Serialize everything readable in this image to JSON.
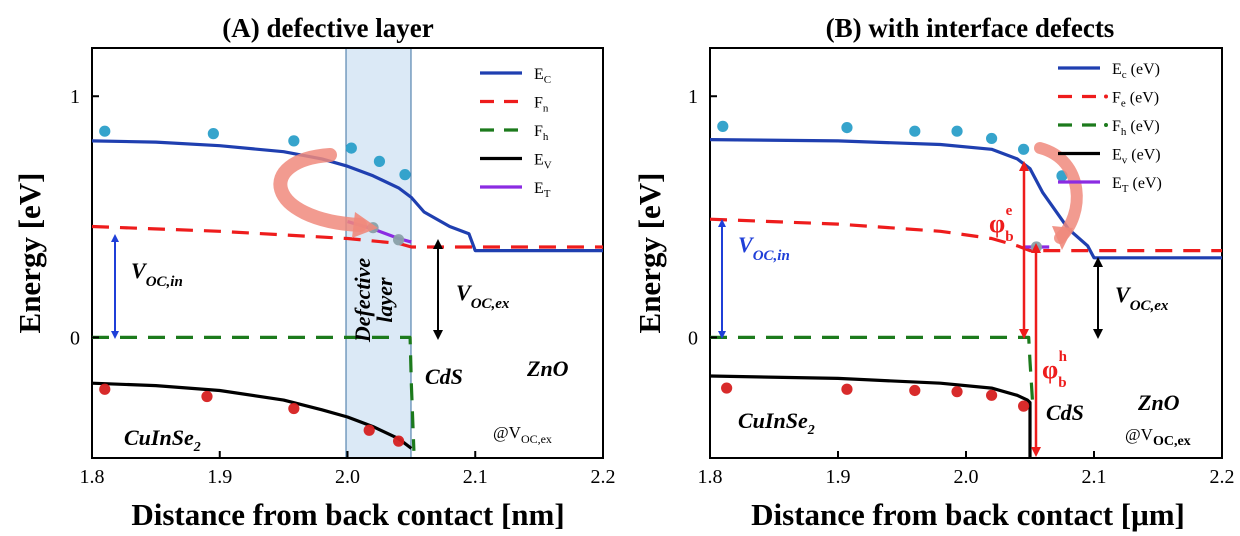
{
  "chart_data": [
    {
      "type": "line",
      "title": "(A) defective layer",
      "xlabel": "Distance from back contact [nm]",
      "ylabel": "Energy [eV]",
      "xlim": [
        1.8,
        2.2
      ],
      "ylim": [
        -0.5,
        1.2
      ],
      "xticks": [
        "1.8",
        "1.9",
        "2.0",
        "2.1",
        "2.2"
      ],
      "yticks": [
        "0",
        "1"
      ],
      "legend_position": "top-right",
      "series": [
        {
          "name": "E_C",
          "label_main": "E",
          "label_sub": "C",
          "color": "#1f3fb0",
          "style": "solid",
          "x": [
            1.8,
            1.85,
            1.9,
            1.95,
            1.98,
            2.0,
            2.02,
            2.04,
            2.05,
            2.06,
            2.08,
            2.095,
            2.1,
            2.2
          ],
          "y": [
            0.815,
            0.81,
            0.795,
            0.77,
            0.74,
            0.71,
            0.67,
            0.62,
            0.58,
            0.52,
            0.46,
            0.43,
            0.36,
            0.36
          ]
        },
        {
          "name": "F_n",
          "label_main": "F",
          "label_sub": "n",
          "color": "#ee1c1c",
          "style": "dashed",
          "x": [
            1.8,
            1.9,
            2.0,
            2.04,
            2.05,
            2.2
          ],
          "y": [
            0.46,
            0.44,
            0.41,
            0.39,
            0.375,
            0.375
          ]
        },
        {
          "name": "F_h",
          "label_main": "F",
          "label_sub": "h",
          "color": "#1c7a1c",
          "style": "dashed",
          "x": [
            1.8,
            2.049,
            2.05,
            2.052
          ],
          "y": [
            0.0,
            0.0,
            -0.2,
            -0.47
          ]
        },
        {
          "name": "E_V",
          "label_main": "E",
          "label_sub": "V",
          "color": "#000000",
          "style": "solid",
          "x": [
            1.8,
            1.85,
            1.9,
            1.95,
            1.98,
            2.0,
            2.02,
            2.04,
            2.05
          ],
          "y": [
            -0.19,
            -0.2,
            -0.22,
            -0.26,
            -0.3,
            -0.33,
            -0.37,
            -0.42,
            -0.46
          ]
        },
        {
          "name": "E_T",
          "label_main": "E",
          "label_sub": "T",
          "color": "#8b2be2",
          "style": "solid",
          "x": [
            2.0,
            2.02,
            2.04,
            2.05
          ],
          "y": [
            0.48,
            0.45,
            0.41,
            0.395
          ]
        }
      ],
      "scatter": [
        {
          "color": "#2b9fc9",
          "x": [
            1.81,
            1.895,
            1.958,
            2.003,
            2.025,
            2.045
          ],
          "y": [
            0.855,
            0.845,
            0.815,
            0.785,
            0.73,
            0.675
          ]
        },
        {
          "color": "#d62020",
          "x": [
            1.81,
            1.89,
            1.958,
            2.017,
            2.04
          ],
          "y": [
            -0.215,
            -0.245,
            -0.295,
            -0.385,
            -0.43
          ]
        },
        {
          "color": "#8aa0a8",
          "x": [
            2.02,
            2.04
          ],
          "y": [
            0.455,
            0.405
          ]
        }
      ],
      "annotations": {
        "v_in": "V",
        "v_in_sub": "OC,in",
        "v_ex": "V",
        "v_ex_sub": "OC,ex",
        "cds": "CdS",
        "zno": "ZnO",
        "cis": "CuInSe",
        "cis_sub": "2",
        "at": "@V",
        "at_sub": "OC,ex",
        "defect_line1": "Defective",
        "defect_line2": "layer"
      }
    },
    {
      "type": "line",
      "title": "(B) with interface defects",
      "xlabel": "Distance from back contact [μm]",
      "ylabel": "Energy [eV]",
      "xlim": [
        1.8,
        2.2
      ],
      "ylim": [
        -0.5,
        1.2
      ],
      "xticks": [
        "1.8",
        "1.9",
        "2.0",
        "2.1",
        "2.2"
      ],
      "yticks": [
        "0",
        "1"
      ],
      "legend_position": "top-right",
      "series": [
        {
          "name": "E_c (eV)",
          "label_main": "E",
          "label_sub": "c",
          "label_tail": " (eV)",
          "color": "#1f3fb0",
          "style": "solid",
          "x": [
            1.8,
            1.9,
            1.98,
            2.02,
            2.04,
            2.05,
            2.06,
            2.08,
            2.095,
            2.1,
            2.2
          ],
          "y": [
            0.82,
            0.815,
            0.8,
            0.78,
            0.74,
            0.7,
            0.6,
            0.45,
            0.38,
            0.33,
            0.33
          ]
        },
        {
          "name": "F_e (eV)",
          "label_main": "F",
          "label_sub": "e",
          "label_tail": " (eV)",
          "color": "#ee1c1c",
          "style": "dashed",
          "x": [
            1.8,
            1.9,
            1.98,
            2.02,
            2.04,
            2.05,
            2.2
          ],
          "y": [
            0.49,
            0.47,
            0.44,
            0.41,
            0.38,
            0.36,
            0.36
          ]
        },
        {
          "name": "F_h (eV)",
          "label_main": "F",
          "label_sub": "h",
          "label_tail": " (eV)",
          "color": "#1c7a1c",
          "style": "dashed",
          "x": [
            1.8,
            2.049,
            2.05,
            2.052
          ],
          "y": [
            0.0,
            0.0,
            -0.1,
            -0.27
          ]
        },
        {
          "name": "E_v (eV)",
          "label_main": "E",
          "label_sub": "v",
          "label_tail": " (eV)",
          "color": "#000000",
          "style": "solid",
          "x": [
            1.8,
            1.9,
            1.98,
            2.02,
            2.04,
            2.048,
            2.05,
            2.05
          ],
          "y": [
            -0.16,
            -0.17,
            -0.19,
            -0.21,
            -0.24,
            -0.26,
            -0.27,
            -0.5
          ]
        },
        {
          "name": "E_T (eV)",
          "label_main": "E",
          "label_sub": "T",
          "label_tail": " (eV)",
          "color": "#8b2be2",
          "style": "solid",
          "x": [
            2.045,
            2.065
          ],
          "y": [
            0.375,
            0.375
          ]
        }
      ],
      "scatter": [
        {
          "color": "#2b9fc9",
          "x": [
            1.81,
            1.907,
            1.96,
            1.993,
            2.02,
            2.045,
            2.075
          ],
          "y": [
            0.875,
            0.87,
            0.855,
            0.855,
            0.825,
            0.78,
            0.67
          ]
        },
        {
          "color": "#d62020",
          "x": [
            1.813,
            1.907,
            1.96,
            1.993,
            2.02,
            2.045
          ],
          "y": [
            -0.21,
            -0.215,
            -0.22,
            -0.225,
            -0.24,
            -0.285
          ]
        },
        {
          "color": "#8aa0a8",
          "x": [
            2.055
          ],
          "y": [
            0.375
          ]
        }
      ],
      "annotations": {
        "v_in": "V",
        "v_in_sub": "OC,in",
        "v_ex": "V",
        "v_ex_sub": "OC,ex",
        "cds": "CdS",
        "zno": "ZnO",
        "cis": "CuInSe",
        "cis_sub": "2",
        "at": "@V",
        "at_sub": "OC,ex",
        "phi_e": "φ",
        "phi_e_sub": "b",
        "phi_e_sup": "e",
        "phi_h": "φ",
        "phi_h_sub": "b",
        "phi_h_sup": "h"
      }
    }
  ]
}
